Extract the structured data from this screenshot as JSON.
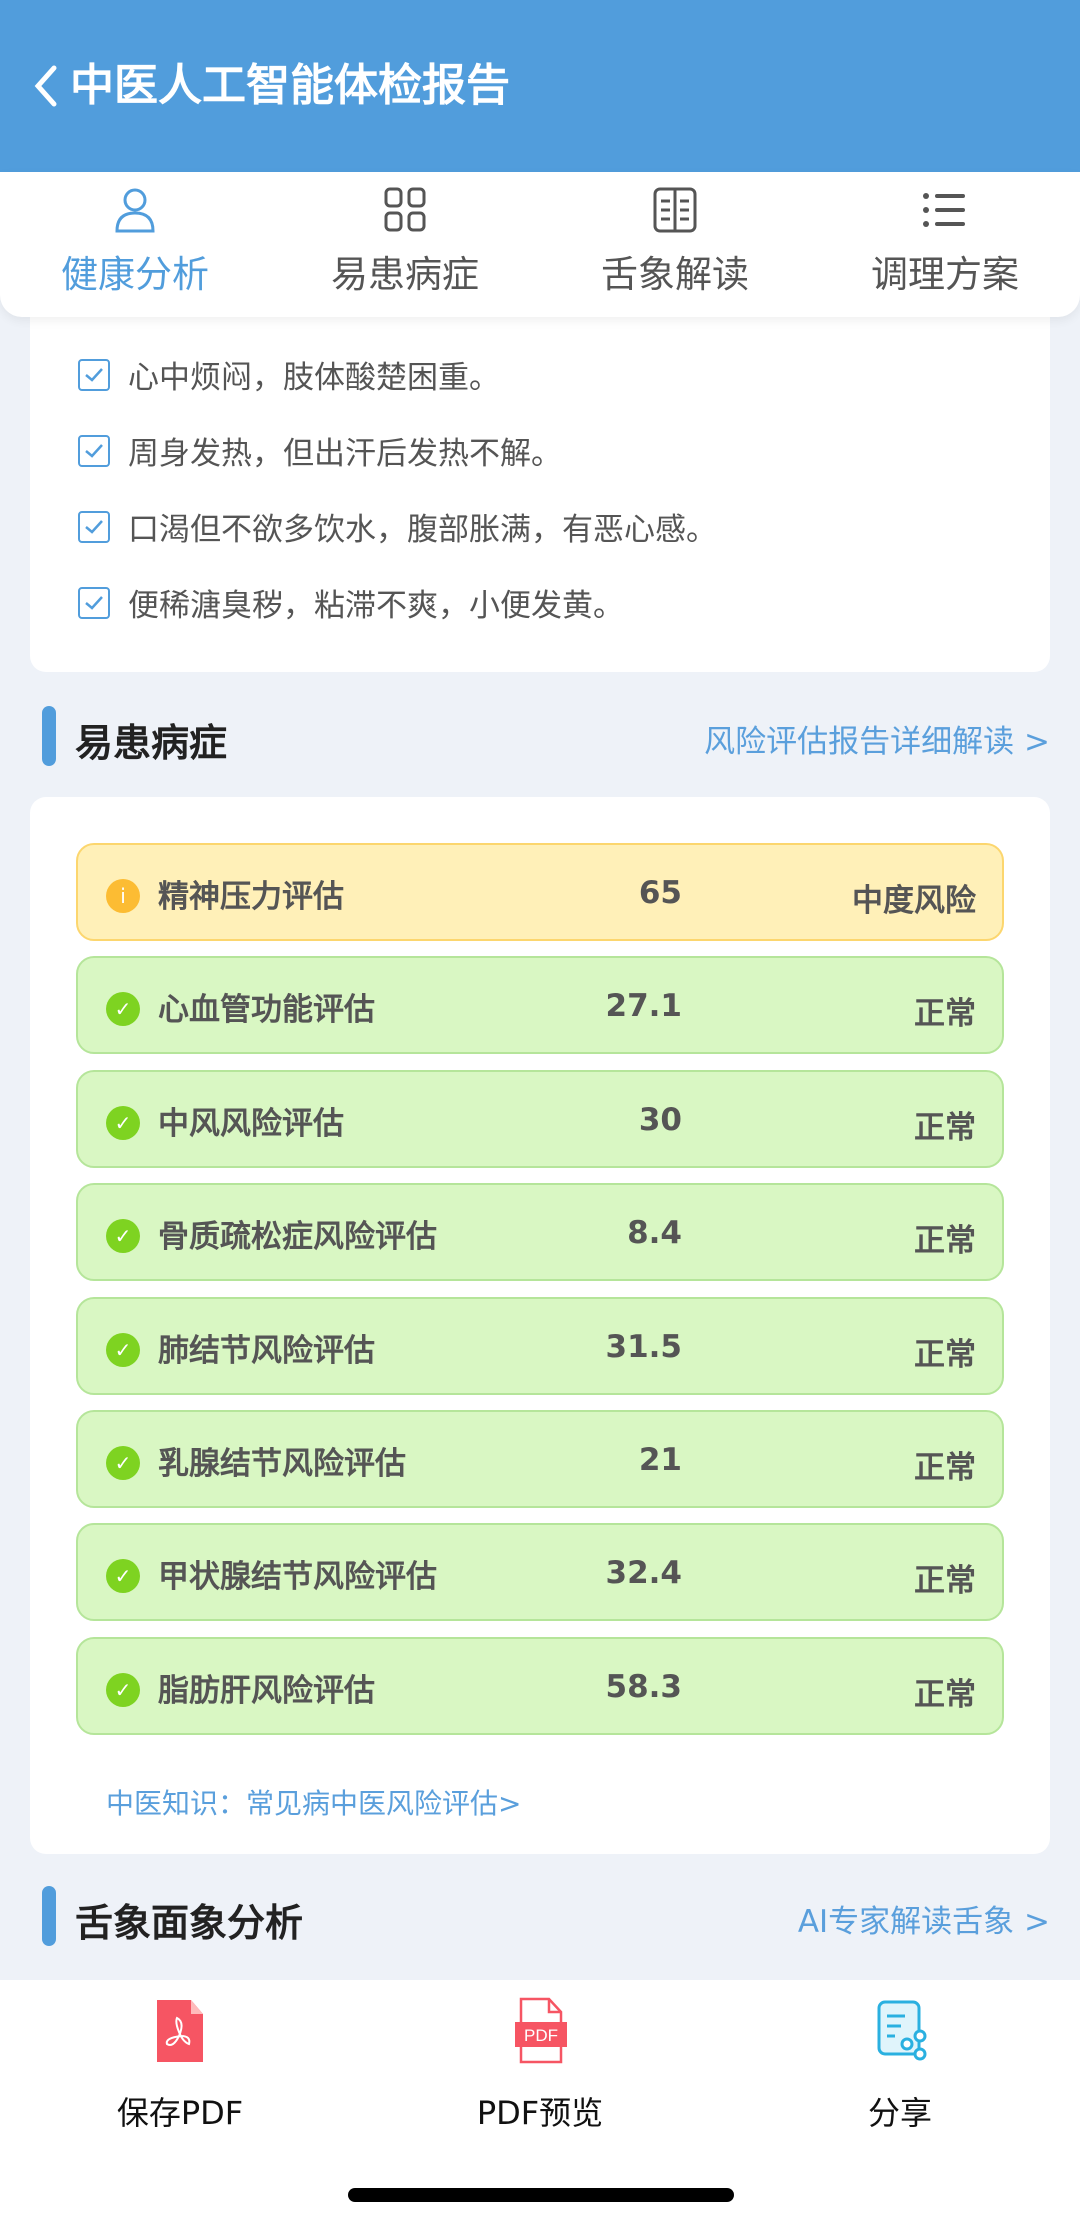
{
  "header": {
    "title": "中医人工智能体检报告"
  },
  "tabs": [
    {
      "label": "健康分析",
      "icon": "user-icon",
      "active": true
    },
    {
      "label": "易患病症",
      "icon": "grid-icon"
    },
    {
      "label": "舌象解读",
      "icon": "book-icon"
    },
    {
      "label": "调理方案",
      "icon": "list-icon"
    }
  ],
  "symptoms": [
    "心中烦闷，肢体酸楚困重。",
    "周身发热，但出汗后发热不解。",
    "口渴但不欲多饮水，腹部胀满，有恶心感。",
    "便稀溏臭秽，粘滞不爽，小便发黄。"
  ],
  "diseases": {
    "title": "易患病症",
    "link": "风险评估报告详细解读 >",
    "rows": [
      {
        "name": "精神压力评估",
        "value": "65",
        "status": "中度风险",
        "level": "warning"
      },
      {
        "name": "心血管功能评估",
        "value": "27.1",
        "status": "正常",
        "level": "normal"
      },
      {
        "name": "中风风险评估",
        "value": "30",
        "status": "正常",
        "level": "normal"
      },
      {
        "name": "骨质疏松症风险评估",
        "value": "8.4",
        "status": "正常",
        "level": "normal"
      },
      {
        "name": "肺结节风险评估",
        "value": "31.5",
        "status": "正常",
        "level": "normal"
      },
      {
        "name": "乳腺结节风险评估",
        "value": "21",
        "status": "正常",
        "level": "normal"
      },
      {
        "name": "甲状腺结节风险评估",
        "value": "32.4",
        "status": "正常",
        "level": "normal"
      },
      {
        "name": "脂肪肝风险评估",
        "value": "58.3",
        "status": "正常",
        "level": "normal"
      }
    ],
    "knowledge": "中医知识：常见病中医风险评估>"
  },
  "tongue": {
    "title": "舌象面象分析",
    "link": "AI专家解读舌象 >"
  },
  "bottom": [
    {
      "label": "保存PDF",
      "icon": "pdf-save-icon"
    },
    {
      "label": "PDF预览",
      "icon": "pdf-preview-icon"
    },
    {
      "label": "分享",
      "icon": "share-icon"
    }
  ],
  "colors": {
    "primary": "#519ddc",
    "warning": "#fcbc33",
    "normal": "#7ed321"
  }
}
